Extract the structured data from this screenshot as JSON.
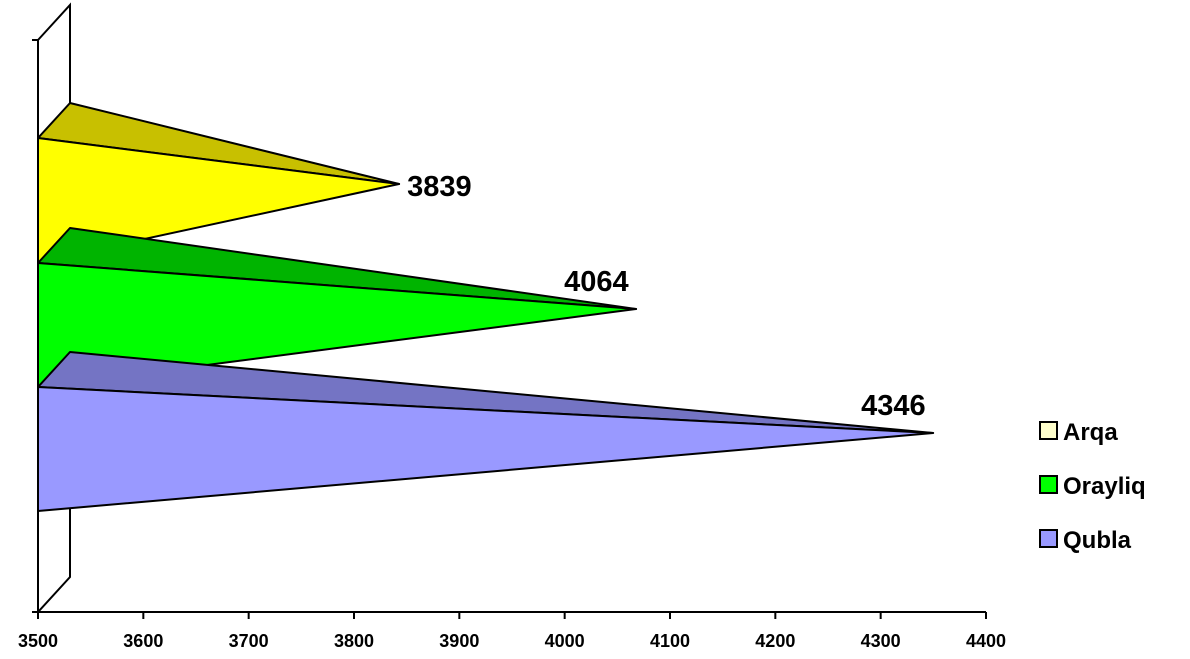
{
  "chart_data": {
    "type": "bar",
    "orientation": "horizontal",
    "style": "3d-pyramid",
    "categories": [
      "Arqa",
      "Orayliq",
      "Qubla"
    ],
    "values": [
      3839,
      4064,
      4346
    ],
    "data_labels": [
      "3839",
      "4064",
      "4346"
    ],
    "title": "",
    "xlabel": "",
    "ylabel": "",
    "xlim": [
      3500,
      4400
    ],
    "x_ticks": [
      3500,
      3600,
      3700,
      3800,
      3900,
      4000,
      4100,
      4200,
      4300,
      4400
    ],
    "x_tick_labels": [
      "3500",
      "3600",
      "3700",
      "3800",
      "3900",
      "4000",
      "4100",
      "4200",
      "4300",
      "4400"
    ],
    "grid": false,
    "legend": {
      "position": "right",
      "entries": [
        "Arqa",
        "Orayliq",
        "Qubla"
      ]
    },
    "colors": {
      "Arqa": {
        "front": "#ffff00",
        "top": "#c8c000",
        "legend": "#ffffcc"
      },
      "Orayliq": {
        "front": "#00ff00",
        "top": "#00b400",
        "legend": "#00ff00"
      },
      "Qubla": {
        "front": "#9999ff",
        "top": "#7474c4",
        "legend": "#9999ff"
      }
    }
  }
}
